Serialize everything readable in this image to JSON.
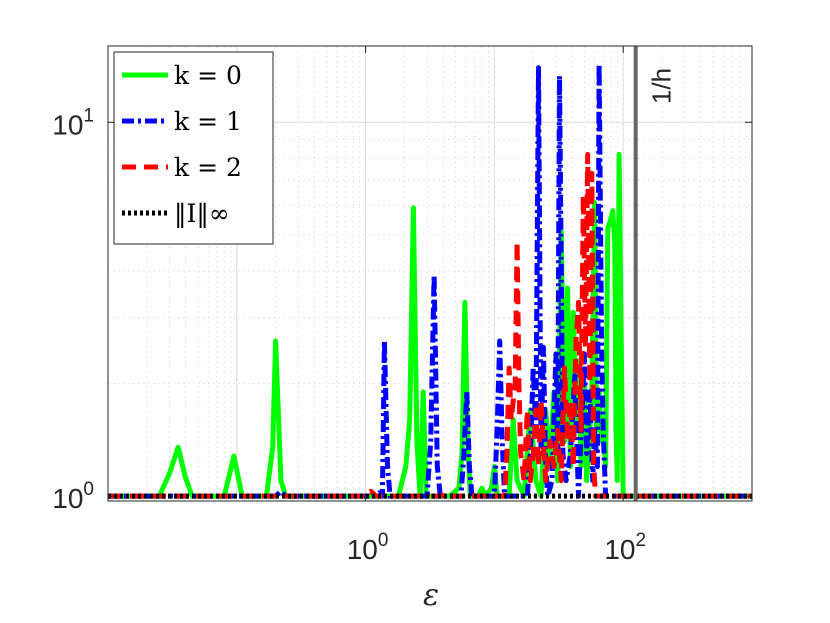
{
  "chart_data": {
    "type": "line",
    "title": "",
    "xlabel": "ε",
    "ylabel": "",
    "xscale": "log",
    "yscale": "log",
    "xlim": [
      0.01,
      1000
    ],
    "ylim": [
      0.97,
      16
    ],
    "grid": "on (major and minor)",
    "legend_placement": "top-left",
    "x_ticks": [
      {
        "base": "10",
        "exp": "0",
        "value": 1
      },
      {
        "base": "10",
        "exp": "2",
        "value": 100
      }
    ],
    "y_ticks": [
      {
        "base": "10",
        "exp": "0",
        "value": 1
      },
      {
        "base": "10",
        "exp": "1",
        "value": 10
      }
    ],
    "annotations": [
      {
        "text": "1/h",
        "x": 125,
        "kind": "vertical-line",
        "color": "#666666"
      }
    ],
    "series": [
      {
        "name": "k = 0",
        "color": "#00ff00",
        "dash": "solid",
        "points": [
          [
            0.01,
            1.0
          ],
          [
            0.025,
            1.0
          ],
          [
            0.03,
            1.15
          ],
          [
            0.035,
            1.35
          ],
          [
            0.04,
            1.12
          ],
          [
            0.045,
            1.0
          ],
          [
            0.08,
            1.0
          ],
          [
            0.095,
            1.28
          ],
          [
            0.11,
            1.0
          ],
          [
            0.17,
            1.0
          ],
          [
            0.19,
            1.35
          ],
          [
            0.2,
            2.6
          ],
          [
            0.22,
            1.1
          ],
          [
            0.24,
            1.0
          ],
          [
            1.3,
            1.0
          ],
          [
            1.8,
            1.0
          ],
          [
            2.05,
            1.2
          ],
          [
            2.2,
            1.6
          ],
          [
            2.35,
            5.9
          ],
          [
            2.5,
            1.4
          ],
          [
            2.65,
            1.0
          ],
          [
            2.8,
            1.9
          ],
          [
            2.95,
            1.0
          ],
          [
            3.6,
            1.0
          ],
          [
            4.5,
            1.0
          ],
          [
            5.3,
            1.05
          ],
          [
            5.6,
            1.3
          ],
          [
            5.9,
            3.3
          ],
          [
            6.2,
            1.4
          ],
          [
            6.5,
            1.0
          ],
          [
            7.5,
            1.0
          ],
          [
            8.0,
            1.05
          ],
          [
            8.5,
            1.0
          ],
          [
            9.5,
            1.05
          ],
          [
            10,
            1.2
          ],
          [
            10.5,
            1.0
          ],
          [
            13,
            1.0
          ],
          [
            14,
            1.6
          ],
          [
            15,
            1.1
          ],
          [
            17,
            1.0
          ],
          [
            19,
            1.7
          ],
          [
            21,
            1.1
          ],
          [
            23,
            1.0
          ],
          [
            25,
            1.7
          ],
          [
            27,
            1.2
          ],
          [
            29,
            1.9
          ],
          [
            31,
            1.1
          ],
          [
            33,
            5.1
          ],
          [
            35,
            1.4
          ],
          [
            37,
            3.6
          ],
          [
            39,
            1.2
          ],
          [
            41,
            3.1
          ],
          [
            43,
            1.6
          ],
          [
            45,
            2.3
          ],
          [
            47,
            1.2
          ],
          [
            50,
            2.0
          ],
          [
            52,
            1.1
          ],
          [
            55,
            1.5
          ],
          [
            57,
            1.9
          ],
          [
            60,
            6.1
          ],
          [
            62,
            1.5
          ],
          [
            65,
            1.9
          ],
          [
            68,
            1.4
          ],
          [
            70,
            1.6
          ],
          [
            73,
            1.2
          ],
          [
            76,
            5.2
          ],
          [
            80,
            5.5
          ],
          [
            83,
            5.8
          ],
          [
            86,
            4.7
          ],
          [
            88,
            1.5
          ],
          [
            90,
            1.1
          ],
          [
            93,
            8.2
          ],
          [
            96,
            3.0
          ],
          [
            100,
            1.0
          ],
          [
            1000,
            1.0
          ]
        ]
      },
      {
        "name": "k = 1",
        "color": "#0000ff",
        "dash": "dash-dot",
        "points": [
          [
            0.01,
            1.0
          ],
          [
            0.2,
            1.0
          ],
          [
            0.22,
            1.03
          ],
          [
            0.24,
            1.0
          ],
          [
            1.2,
            1.0
          ],
          [
            1.28,
            1.02
          ],
          [
            1.35,
            1.0
          ],
          [
            1.4,
            2.6
          ],
          [
            1.48,
            1.2
          ],
          [
            1.55,
            1.0
          ],
          [
            3.0,
            1.0
          ],
          [
            3.2,
            1.4
          ],
          [
            3.4,
            3.9
          ],
          [
            3.6,
            1.2
          ],
          [
            3.8,
            1.0
          ],
          [
            5.5,
            1.0
          ],
          [
            5.8,
            1.3
          ],
          [
            6.1,
            1.9
          ],
          [
            6.4,
            1.2
          ],
          [
            6.7,
            1.0
          ],
          [
            10,
            1.0
          ],
          [
            10.5,
            1.5
          ],
          [
            11,
            2.6
          ],
          [
            11.5,
            1.4
          ],
          [
            12,
            1.0
          ],
          [
            18,
            1.0
          ],
          [
            19,
            1.3
          ],
          [
            20,
            2.2
          ],
          [
            21,
            1.5
          ],
          [
            22,
            14.0
          ],
          [
            23,
            1.3
          ],
          [
            24,
            2.5
          ],
          [
            25,
            1.2
          ],
          [
            26,
            1.0
          ],
          [
            28,
            1.1
          ],
          [
            30,
            2.4
          ],
          [
            31,
            1.3
          ],
          [
            32,
            13.3
          ],
          [
            34,
            1.3
          ],
          [
            36,
            1.1
          ],
          [
            39,
            1.3
          ],
          [
            42,
            2.1
          ],
          [
            45,
            1.0
          ],
          [
            48,
            1.7
          ],
          [
            50,
            2.4
          ],
          [
            52,
            1.3
          ],
          [
            55,
            1.9
          ],
          [
            58,
            1.1
          ],
          [
            60,
            1.5
          ],
          [
            63,
            1.2
          ],
          [
            65,
            14.3
          ],
          [
            68,
            2.5
          ],
          [
            70,
            1.5
          ],
          [
            73,
            1.0
          ],
          [
            1000,
            1.0
          ]
        ]
      },
      {
        "name": "k = 2",
        "color": "#ff0000",
        "dash": "dashed",
        "points": [
          [
            0.01,
            1.0
          ],
          [
            1.0,
            1.0
          ],
          [
            1.1,
            1.03
          ],
          [
            1.2,
            1.0
          ],
          [
            2.0,
            1.0
          ],
          [
            2.1,
            1.02
          ],
          [
            2.2,
            1.0
          ],
          [
            3.9,
            1.0
          ],
          [
            4.1,
            1.02
          ],
          [
            4.3,
            1.0
          ],
          [
            12,
            1.0
          ],
          [
            12.5,
            1.3
          ],
          [
            13,
            2.2
          ],
          [
            13.5,
            1.6
          ],
          [
            14,
            1.8
          ],
          [
            14.5,
            2.0
          ],
          [
            15,
            4.8
          ],
          [
            15.5,
            2.0
          ],
          [
            16,
            1.3
          ],
          [
            17,
            1.1
          ],
          [
            18,
            1.7
          ],
          [
            19,
            1.1
          ],
          [
            20,
            1.3
          ],
          [
            21,
            1.7
          ],
          [
            22,
            1.2
          ],
          [
            23,
            1.8
          ],
          [
            25,
            1.1
          ],
          [
            27,
            1.4
          ],
          [
            29,
            1.2
          ],
          [
            31,
            1.5
          ],
          [
            33,
            1.1
          ],
          [
            35,
            2.2
          ],
          [
            37,
            1.4
          ],
          [
            39,
            1.8
          ],
          [
            41,
            1.2
          ],
          [
            43,
            2.6
          ],
          [
            45,
            3.3
          ],
          [
            47,
            1.5
          ],
          [
            49,
            6.4
          ],
          [
            51,
            2.5
          ],
          [
            53,
            8.2
          ],
          [
            55,
            2.0
          ],
          [
            57,
            7.3
          ],
          [
            59,
            1.2
          ],
          [
            61,
            1.0
          ],
          [
            1000,
            1.0
          ]
        ]
      },
      {
        "name": "‖I‖∞",
        "color": "#000000",
        "dash": "dotted",
        "points": [
          [
            0.01,
            1.0
          ],
          [
            1000,
            1.0
          ]
        ]
      }
    ]
  }
}
